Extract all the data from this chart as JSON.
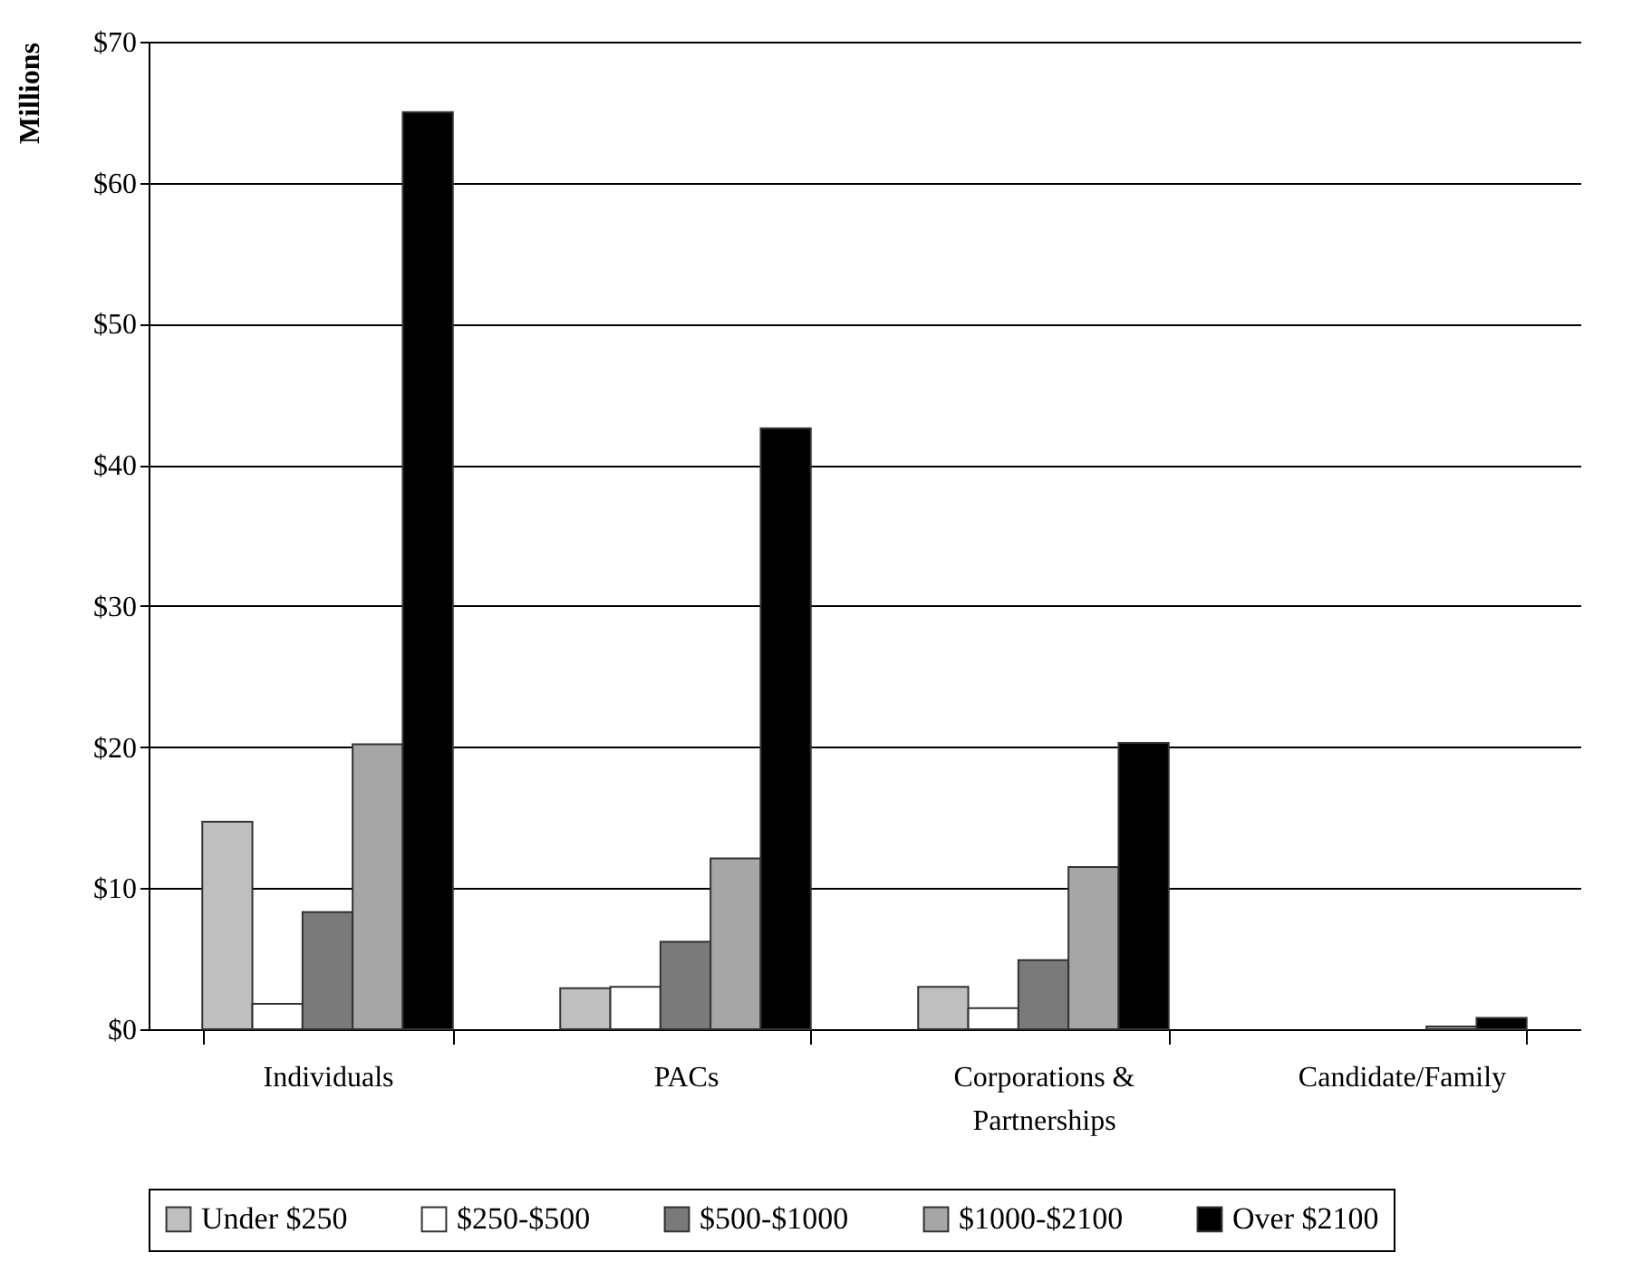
{
  "chart_data": {
    "type": "bar",
    "ylabel": "Millions",
    "categories": [
      "Individuals",
      "PACs",
      "Corporations & Partnerships",
      "Candidate/Family"
    ],
    "series": [
      {
        "name": "Under $250",
        "color": "#bfbfbf",
        "values": [
          14.7,
          2.9,
          3.0,
          0
        ]
      },
      {
        "name": "$250-$500",
        "color": "#ffffff",
        "values": [
          1.8,
          3.0,
          1.5,
          0
        ]
      },
      {
        "name": "$500-$1000",
        "color": "#7a7a7a",
        "values": [
          8.3,
          6.2,
          4.9,
          0
        ]
      },
      {
        "name": "$1000-$2100",
        "color": "#a6a6a6",
        "values": [
          20.2,
          12.1,
          11.5,
          0.2
        ]
      },
      {
        "name": "Over $2100",
        "color": "#000000",
        "values": [
          65.0,
          42.6,
          20.3,
          0.8
        ]
      }
    ],
    "ylim": [
      0,
      70
    ],
    "yticks": [
      {
        "value": 0,
        "label": "$0"
      },
      {
        "value": 10,
        "label": "$10"
      },
      {
        "value": 20,
        "label": "$20"
      },
      {
        "value": 30,
        "label": "$30"
      },
      {
        "value": 40,
        "label": "$40"
      },
      {
        "value": 50,
        "label": "$50"
      },
      {
        "value": 60,
        "label": "$60"
      },
      {
        "value": 70,
        "label": "$70"
      }
    ],
    "grid": "y",
    "legend": "bottom"
  }
}
